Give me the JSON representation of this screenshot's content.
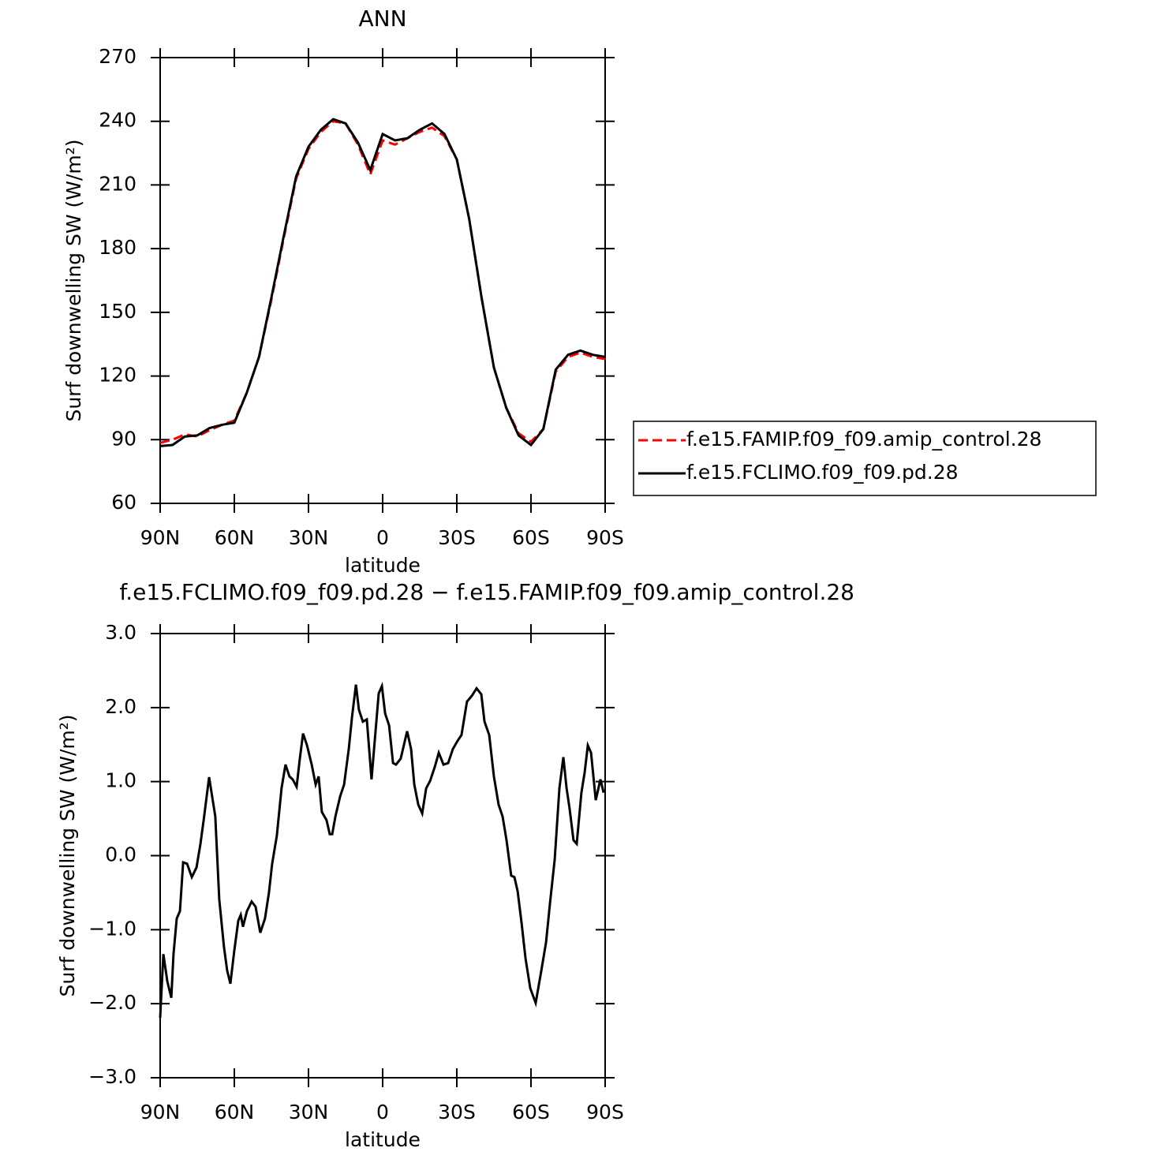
{
  "chart_data": [
    {
      "type": "line",
      "title": "ANN",
      "xlabel": "latitude",
      "ylabel": "Surf downwelling SW (W/m²)",
      "x": [
        90,
        85,
        80,
        75,
        70,
        65,
        60,
        55,
        50,
        45,
        40,
        35,
        30,
        25,
        20,
        15,
        10,
        5,
        0,
        -5,
        -10,
        -15,
        -20,
        -25,
        -30,
        -35,
        -40,
        -45,
        -50,
        -55,
        -60,
        -65,
        -70,
        -75,
        -80,
        -85,
        -90
      ],
      "series": [
        {
          "name": "f.e15.FAMIP.f09_f09.amip_control.28",
          "color": "#ff0000",
          "linestyle": "dashed",
          "values": [
            88.5,
            90,
            92.5,
            91.5,
            94.5,
            97,
            99,
            112,
            129,
            156,
            185,
            213,
            227,
            235,
            240,
            239,
            229,
            215,
            231,
            229,
            232,
            235,
            237,
            233,
            222,
            194,
            157,
            124,
            105,
            93,
            89,
            95,
            122,
            129,
            131,
            129,
            128
          ]
        },
        {
          "name": "f.e15.FCLIMO.f09_f09.pd.28",
          "color": "#000000",
          "linestyle": "solid",
          "values": [
            87,
            87.5,
            91.5,
            92,
            95.5,
            97,
            98,
            112,
            129,
            157,
            186,
            214,
            228,
            236,
            241,
            239,
            230,
            217,
            234,
            231,
            232,
            236,
            239,
            234,
            222,
            194,
            157,
            124,
            105,
            92,
            87.5,
            95,
            123,
            130,
            132,
            130,
            129
          ]
        }
      ],
      "xlim": [
        90,
        -90
      ],
      "xticks": [
        {
          "value": 90,
          "label": "90N"
        },
        {
          "value": 60,
          "label": "60N"
        },
        {
          "value": 30,
          "label": "30N"
        },
        0,
        {
          "value": -30,
          "label": "30S"
        },
        {
          "value": -60,
          "label": "60S"
        },
        {
          "value": -90,
          "label": "90S"
        }
      ],
      "ylim": [
        60,
        270
      ],
      "yticks": [
        60,
        90,
        120,
        150,
        180,
        210,
        240,
        270
      ],
      "legend": "right"
    },
    {
      "type": "line",
      "title": "f.e15.FCLIMO.f09_f09.pd.28 − f.e15.FAMIP.f09_f09.amip_control.28",
      "xlabel": "latitude",
      "ylabel": "Surf downwelling SW (W/m²)",
      "x": [
        90,
        88.7,
        87.1,
        85.5,
        84.6,
        83.3,
        82.0,
        80.7,
        79.1,
        77.2,
        75.3,
        73.7,
        72.4,
        70.2,
        67.7,
        66.1,
        64.2,
        62.9,
        61.6,
        60,
        58.4,
        57.4,
        56.5,
        54.9,
        53.0,
        51.4,
        49.5,
        47.6,
        46.0,
        44.7,
        42.8,
        40.9,
        39.3,
        37.7,
        36.4,
        34.8,
        33.5,
        32.2,
        30.6,
        28.7,
        27.1,
        25.9,
        24.6,
        22.7,
        21.4,
        20.4,
        19.1,
        17.2,
        15.6,
        13.7,
        12.4,
        10.8,
        9.6,
        8.0,
        6.4,
        4.5,
        3.2,
        1.6,
        0.3,
        -1.0,
        -2.6,
        -4.2,
        -5.4,
        -7.3,
        -9.9,
        -11.5,
        -12.8,
        -14.4,
        -16.0,
        -17.6,
        -19.2,
        -21.1,
        -22.7,
        -24.6,
        -26.5,
        -28.4,
        -30.3,
        -31.9,
        -34.1,
        -36.1,
        -38.0,
        -39.9,
        -41.2,
        -43.1,
        -45.0,
        -46.9,
        -48.5,
        -50.1,
        -52.0,
        -53.3,
        -54.6,
        -56.2,
        -57.8,
        -59.7,
        -61.9,
        -64.2,
        -66.1,
        -67.7,
        -69.6,
        -71.5,
        -73.1,
        -74.4,
        -75.6,
        -77.2,
        -78.5,
        -80.4,
        -81.7,
        -83.0,
        -84.3,
        -86.2,
        -88.1,
        -89.4
      ],
      "series": [
        {
          "color": "#000000",
          "values": [
            -2.19,
            -1.33,
            -1.7,
            -1.92,
            -1.33,
            -0.85,
            -0.75,
            -0.09,
            -0.11,
            -0.29,
            -0.16,
            0.16,
            0.48,
            1.06,
            0.53,
            -0.59,
            -1.23,
            -1.55,
            -1.73,
            -1.28,
            -0.88,
            -0.8,
            -0.96,
            -0.75,
            -0.62,
            -0.69,
            -1.04,
            -0.85,
            -0.5,
            -0.11,
            0.27,
            0.91,
            1.23,
            1.07,
            1.03,
            0.93,
            1.31,
            1.65,
            1.49,
            1.23,
            0.96,
            1.07,
            0.59,
            0.48,
            0.29,
            0.29,
            0.53,
            0.8,
            0.96,
            1.44,
            1.87,
            2.31,
            1.97,
            1.81,
            1.84,
            1.03,
            1.55,
            2.19,
            2.29,
            1.92,
            1.76,
            1.25,
            1.23,
            1.31,
            1.68,
            1.44,
            0.96,
            0.69,
            0.57,
            0.91,
            1.01,
            1.2,
            1.39,
            1.23,
            1.25,
            1.44,
            1.55,
            1.63,
            2.08,
            2.16,
            2.26,
            2.18,
            1.81,
            1.63,
            1.07,
            0.69,
            0.53,
            0.21,
            -0.27,
            -0.29,
            -0.48,
            -0.91,
            -1.39,
            -1.79,
            -1.99,
            -1.55,
            -1.17,
            -0.64,
            -0.05,
            0.91,
            1.33,
            0.91,
            0.64,
            0.21,
            0.16,
            0.85,
            1.12,
            1.49,
            1.39,
            0.75,
            1.03,
            0.85
          ]
        }
      ],
      "xlim": [
        90,
        -90
      ],
      "xticks": [
        {
          "value": 90,
          "label": "90N"
        },
        {
          "value": 60,
          "label": "60N"
        },
        {
          "value": 30,
          "label": "30N"
        },
        0,
        {
          "value": -30,
          "label": "30S"
        },
        {
          "value": -60,
          "label": "60S"
        },
        {
          "value": -90,
          "label": "90S"
        }
      ],
      "ylim": [
        -3,
        3
      ],
      "yticks": [
        {
          "value": -3,
          "label": "−3.0"
        },
        {
          "value": -2,
          "label": "−2.0"
        },
        {
          "value": -1,
          "label": "−1.0"
        },
        {
          "value": 0,
          "label": "0.0"
        },
        {
          "value": 1,
          "label": "1.0"
        },
        {
          "value": 2,
          "label": "2.0"
        },
        {
          "value": 3,
          "label": "3.0"
        }
      ]
    }
  ]
}
